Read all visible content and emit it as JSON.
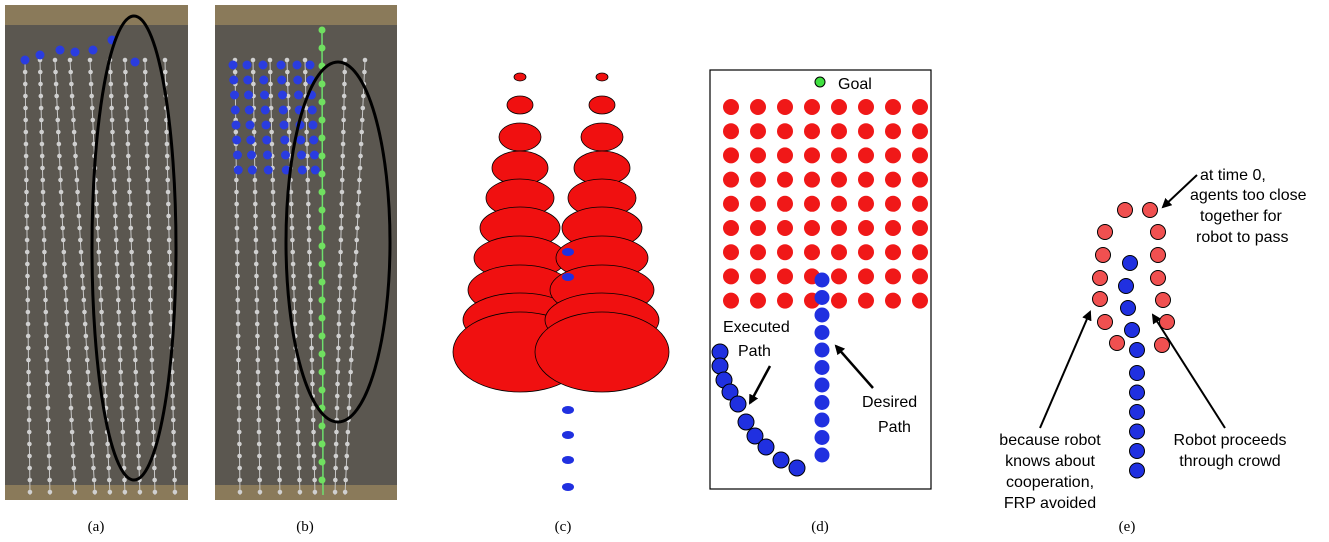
{
  "panels": [
    {
      "label": "(a)"
    },
    {
      "label": "(b)"
    },
    {
      "label": "(c)"
    },
    {
      "label": "(d)",
      "goal": "Goal",
      "executed_path": [
        "Executed",
        "Path"
      ],
      "desired_path": [
        "Desired",
        "Path"
      ]
    },
    {
      "label": "(e)",
      "note_top": [
        "at time 0,",
        "agents too close",
        "together for",
        "robot to pass"
      ],
      "note_left": [
        "because robot",
        "knows about",
        "cooperation,",
        "FRP avoided"
      ],
      "note_right": [
        "Robot proceeds",
        "through crowd"
      ]
    }
  ]
}
